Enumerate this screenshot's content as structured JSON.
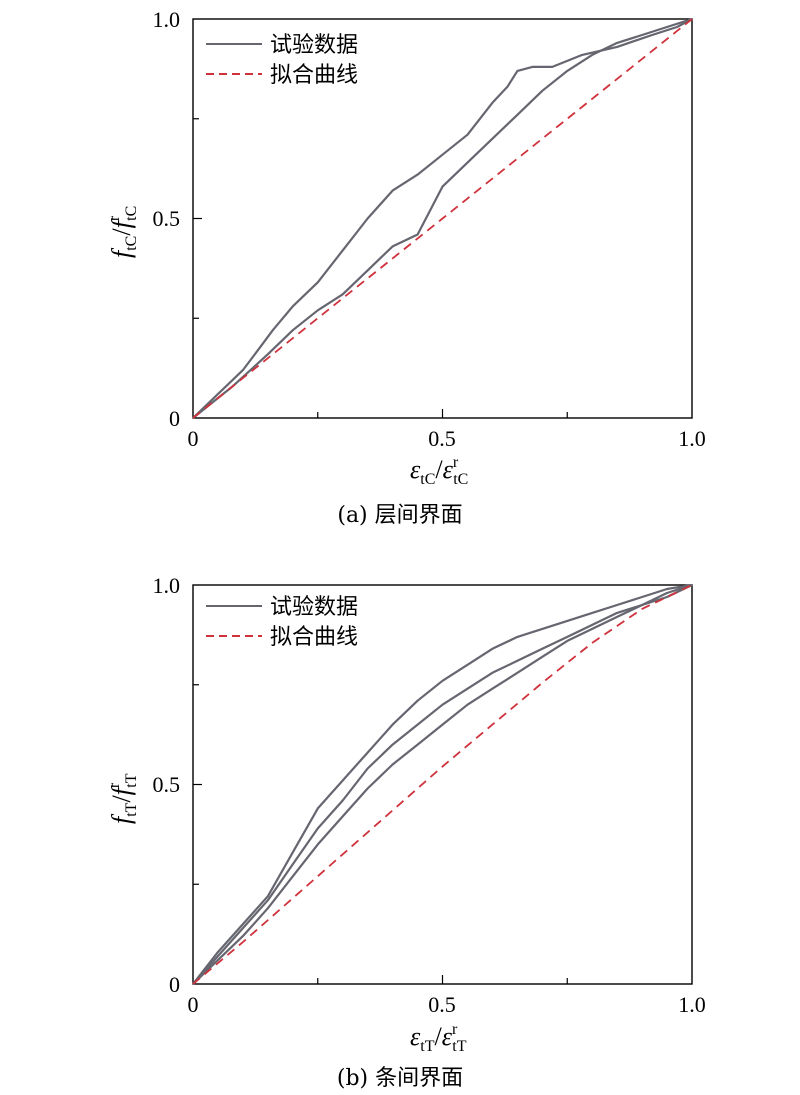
{
  "chart_data": [
    {
      "type": "line",
      "caption": "(a) 层间界面",
      "xlabel": {
        "main": "ε",
        "sub": "tC",
        "sep": "/",
        "main2": "ε",
        "sub2": "tC",
        "sup2": "r"
      },
      "ylabel": {
        "main": "f",
        "sub": "tC",
        "sep": "/",
        "main2": "f",
        "sub2": "tC",
        "sup2": "r"
      },
      "xlim": [
        0,
        1.0
      ],
      "ylim": [
        0,
        1.0
      ],
      "xticks": [
        0,
        0.5,
        1.0
      ],
      "xtick_labels": [
        "0",
        "0.5",
        "1.0"
      ],
      "yticks": [
        0,
        0.5,
        1.0
      ],
      "ytick_labels": [
        "0",
        "0.5",
        "1.0"
      ],
      "legend": {
        "position": "top-left",
        "entries": [
          "试验数据",
          "拟合曲线"
        ]
      },
      "series": [
        {
          "name": "试验数据",
          "style": "solid",
          "color": "#666670",
          "x": [
            0,
            0.05,
            0.1,
            0.13,
            0.16,
            0.2,
            0.25,
            0.3,
            0.35,
            0.4,
            0.45,
            0.5,
            0.55,
            0.6,
            0.63,
            0.65,
            0.68,
            0.72,
            0.78,
            0.85,
            0.92,
            0.97,
            1.0
          ],
          "y": [
            0,
            0.06,
            0.12,
            0.17,
            0.22,
            0.28,
            0.34,
            0.42,
            0.5,
            0.57,
            0.61,
            0.66,
            0.71,
            0.79,
            0.83,
            0.87,
            0.88,
            0.88,
            0.91,
            0.93,
            0.96,
            0.98,
            1.0
          ]
        },
        {
          "name": "试验数据-2",
          "style": "solid",
          "color": "#666670",
          "x": [
            0,
            0.08,
            0.15,
            0.2,
            0.25,
            0.3,
            0.35,
            0.4,
            0.45,
            0.5,
            0.55,
            0.6,
            0.65,
            0.7,
            0.75,
            0.8,
            0.85,
            0.9,
            0.95,
            1.0
          ],
          "y": [
            0,
            0.08,
            0.16,
            0.22,
            0.27,
            0.31,
            0.37,
            0.43,
            0.46,
            0.58,
            0.64,
            0.7,
            0.76,
            0.82,
            0.87,
            0.91,
            0.94,
            0.96,
            0.98,
            1.0
          ]
        },
        {
          "name": "拟合曲线",
          "style": "dashed",
          "color": "#d0323c",
          "x": [
            0,
            0.1,
            0.2,
            0.3,
            0.4,
            0.5,
            0.6,
            0.7,
            0.8,
            0.9,
            1.0
          ],
          "y": [
            0,
            0.1,
            0.2,
            0.3,
            0.4,
            0.5,
            0.6,
            0.7,
            0.8,
            0.9,
            1.0
          ]
        }
      ]
    },
    {
      "type": "line",
      "caption": "(b) 条间界面",
      "xlabel": {
        "main": "ε",
        "sub": "tT",
        "sep": "/",
        "main2": "ε",
        "sub2": "tT",
        "sup2": "r"
      },
      "ylabel": {
        "main": "f",
        "sub": "tT",
        "sep": "/",
        "main2": "f",
        "sub2": "tT",
        "sup2": "r"
      },
      "xlim": [
        0,
        1.0
      ],
      "ylim": [
        0,
        1.0
      ],
      "xticks": [
        0,
        0.5,
        1.0
      ],
      "xtick_labels": [
        "0",
        "0.5",
        "1.0"
      ],
      "yticks": [
        0,
        0.5,
        1.0
      ],
      "ytick_labels": [
        "0",
        "0.5",
        "1.0"
      ],
      "legend": {
        "position": "top-left",
        "entries": [
          "试验数据",
          "拟合曲线"
        ]
      },
      "series": [
        {
          "name": "试验数据",
          "style": "solid",
          "color": "#666670",
          "x": [
            0,
            0.05,
            0.1,
            0.15,
            0.2,
            0.25,
            0.3,
            0.35,
            0.4,
            0.45,
            0.5,
            0.55,
            0.6,
            0.65,
            0.7,
            0.75,
            0.8,
            0.85,
            0.9,
            0.95,
            1.0
          ],
          "y": [
            0,
            0.08,
            0.15,
            0.22,
            0.33,
            0.44,
            0.51,
            0.58,
            0.65,
            0.71,
            0.76,
            0.8,
            0.84,
            0.87,
            0.89,
            0.91,
            0.93,
            0.95,
            0.97,
            0.99,
            1.0
          ]
        },
        {
          "name": "试验数据-2",
          "style": "solid",
          "color": "#666670",
          "x": [
            0,
            0.05,
            0.1,
            0.15,
            0.2,
            0.25,
            0.3,
            0.35,
            0.4,
            0.45,
            0.5,
            0.55,
            0.6,
            0.65,
            0.7,
            0.75,
            0.8,
            0.85,
            0.9,
            0.95,
            1.0
          ],
          "y": [
            0,
            0.07,
            0.14,
            0.21,
            0.3,
            0.39,
            0.46,
            0.54,
            0.6,
            0.65,
            0.7,
            0.74,
            0.78,
            0.81,
            0.84,
            0.87,
            0.9,
            0.93,
            0.95,
            0.98,
            1.0
          ]
        },
        {
          "name": "试验数据-3",
          "style": "solid",
          "color": "#666670",
          "x": [
            0,
            0.05,
            0.1,
            0.15,
            0.2,
            0.25,
            0.3,
            0.35,
            0.4,
            0.45,
            0.5,
            0.55,
            0.6,
            0.65,
            0.7,
            0.75,
            0.8,
            0.85,
            0.9,
            0.95,
            1.0
          ],
          "y": [
            0,
            0.06,
            0.12,
            0.19,
            0.27,
            0.35,
            0.42,
            0.49,
            0.55,
            0.6,
            0.65,
            0.7,
            0.74,
            0.78,
            0.82,
            0.86,
            0.89,
            0.92,
            0.95,
            0.97,
            1.0
          ]
        },
        {
          "name": "拟合曲线",
          "style": "dashed",
          "color": "#d0323c",
          "x": [
            0,
            0.1,
            0.2,
            0.3,
            0.4,
            0.5,
            0.6,
            0.7,
            0.8,
            0.9,
            1.0
          ],
          "y": [
            0,
            0.105,
            0.215,
            0.325,
            0.435,
            0.545,
            0.65,
            0.755,
            0.855,
            0.94,
            1.0
          ]
        }
      ]
    }
  ]
}
